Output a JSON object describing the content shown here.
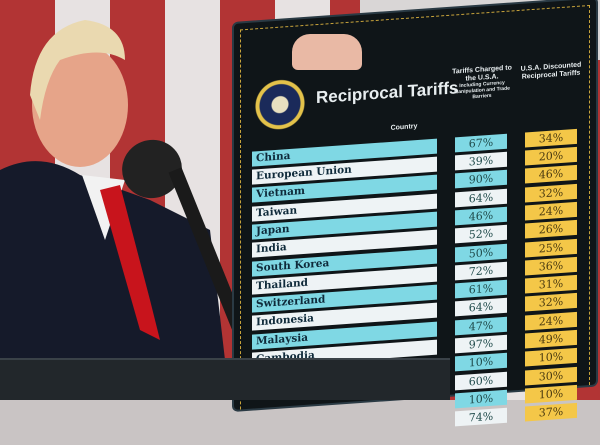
{
  "board": {
    "title": "Reciprocal Tariffs",
    "seal": "presidential-seal",
    "col_country": "Country",
    "col_charged": "Tariffs Charged to the U.S.A.",
    "col_charged_note": "Including Currency Manipulation and Trade Barriers",
    "col_reciprocal": "U.S.A. Discounted Reciprocal Tariffs",
    "rows": [
      {
        "country": "China",
        "charged": "67%",
        "reciprocal": "34%"
      },
      {
        "country": "European Union",
        "charged": "39%",
        "reciprocal": "20%"
      },
      {
        "country": "Vietnam",
        "charged": "90%",
        "reciprocal": "46%"
      },
      {
        "country": "Taiwan",
        "charged": "64%",
        "reciprocal": "32%"
      },
      {
        "country": "Japan",
        "charged": "46%",
        "reciprocal": "24%"
      },
      {
        "country": "India",
        "charged": "52%",
        "reciprocal": "26%"
      },
      {
        "country": "South Korea",
        "charged": "50%",
        "reciprocal": "25%"
      },
      {
        "country": "Thailand",
        "charged": "72%",
        "reciprocal": "36%"
      },
      {
        "country": "Switzerland",
        "charged": "61%",
        "reciprocal": "31%"
      },
      {
        "country": "Indonesia",
        "charged": "64%",
        "reciprocal": "32%"
      },
      {
        "country": "Malaysia",
        "charged": "47%",
        "reciprocal": "24%"
      },
      {
        "country": "Cambodia",
        "charged": "97%",
        "reciprocal": "49%"
      },
      {
        "country": "",
        "charged": "10%",
        "reciprocal": "10%"
      },
      {
        "country": "",
        "charged": "60%",
        "reciprocal": "30%"
      },
      {
        "country": "",
        "charged": "10%",
        "reciprocal": "10%"
      },
      {
        "country": "",
        "charged": "74%",
        "reciprocal": "37%"
      }
    ],
    "colors": {
      "board": "#0f1518",
      "cyan": "#7fd8e4",
      "yellow": "#f4c748",
      "white": "#eef3f5"
    }
  }
}
